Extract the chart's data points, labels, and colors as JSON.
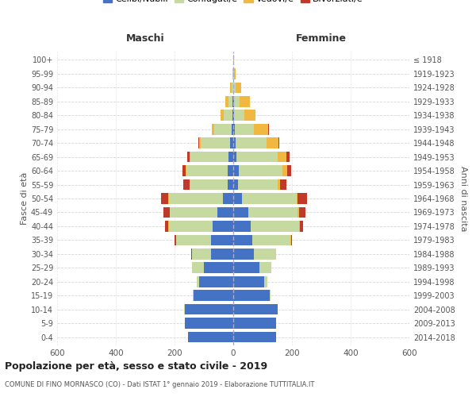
{
  "age_groups": [
    "0-4",
    "5-9",
    "10-14",
    "15-19",
    "20-24",
    "25-29",
    "30-34",
    "35-39",
    "40-44",
    "45-49",
    "50-54",
    "55-59",
    "60-64",
    "65-69",
    "70-74",
    "75-79",
    "80-84",
    "85-89",
    "90-94",
    "95-99",
    "100+"
  ],
  "birth_years": [
    "2014-2018",
    "2009-2013",
    "2004-2008",
    "1999-2003",
    "1994-1998",
    "1989-1993",
    "1984-1988",
    "1979-1983",
    "1974-1978",
    "1969-1973",
    "1964-1968",
    "1959-1963",
    "1954-1958",
    "1949-1953",
    "1944-1948",
    "1939-1943",
    "1934-1938",
    "1929-1933",
    "1924-1928",
    "1919-1923",
    "≤ 1918"
  ],
  "male": {
    "celibi": [
      155,
      165,
      165,
      135,
      115,
      100,
      75,
      75,
      70,
      55,
      35,
      18,
      20,
      15,
      10,
      5,
      2,
      2,
      0,
      0,
      0
    ],
    "coniugati": [
      0,
      0,
      2,
      3,
      10,
      40,
      65,
      120,
      150,
      160,
      185,
      130,
      140,
      130,
      100,
      60,
      30,
      15,
      5,
      2,
      0
    ],
    "vedovi": [
      0,
      0,
      0,
      0,
      0,
      0,
      0,
      0,
      1,
      2,
      2,
      1,
      2,
      3,
      5,
      8,
      10,
      10,
      5,
      2,
      0
    ],
    "divorziati": [
      0,
      0,
      0,
      0,
      0,
      0,
      3,
      5,
      12,
      20,
      25,
      20,
      12,
      8,
      5,
      0,
      0,
      0,
      0,
      0,
      0
    ]
  },
  "female": {
    "nubili": [
      145,
      145,
      150,
      125,
      105,
      90,
      70,
      65,
      60,
      50,
      30,
      15,
      18,
      12,
      8,
      5,
      2,
      2,
      0,
      0,
      0
    ],
    "coniugate": [
      0,
      0,
      2,
      3,
      12,
      40,
      75,
      130,
      165,
      170,
      185,
      135,
      150,
      140,
      105,
      65,
      35,
      20,
      8,
      2,
      0
    ],
    "vedove": [
      0,
      0,
      0,
      0,
      0,
      0,
      0,
      1,
      2,
      5,
      5,
      10,
      15,
      30,
      40,
      50,
      40,
      35,
      20,
      5,
      2
    ],
    "divorziate": [
      0,
      0,
      0,
      0,
      0,
      0,
      2,
      5,
      10,
      20,
      30,
      20,
      15,
      10,
      5,
      2,
      0,
      0,
      0,
      0,
      0
    ]
  },
  "colors": {
    "celibi_nubili": "#4472c4",
    "coniugati": "#c5d9a0",
    "vedovi": "#f0b840",
    "divorziati": "#c0392b"
  },
  "xlim": 600,
  "title": "Popolazione per età, sesso e stato civile - 2019",
  "subtitle": "COMUNE DI FINO MORNASCO (CO) - Dati ISTAT 1° gennaio 2019 - Elaborazione TUTTITALIA.IT",
  "ylabel_left": "Fasce di età",
  "ylabel_right": "Anni di nascita",
  "xlabel_left": "Maschi",
  "xlabel_right": "Femmine"
}
